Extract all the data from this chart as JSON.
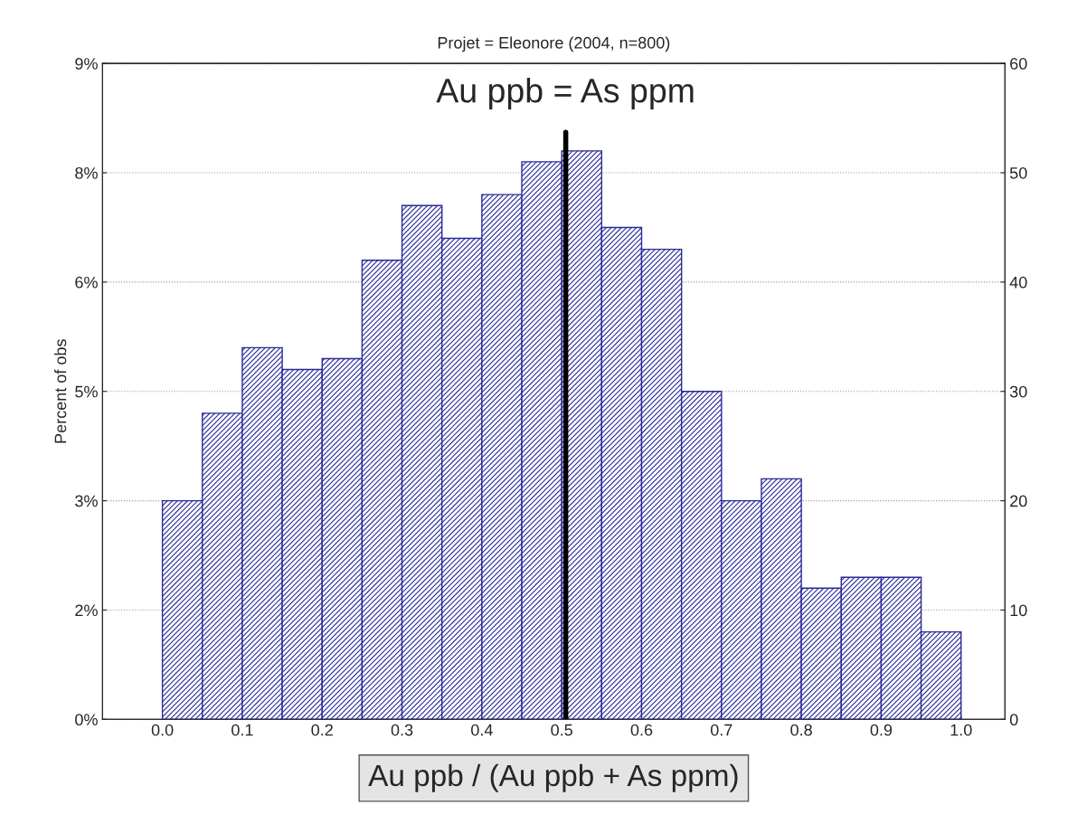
{
  "chart_data": {
    "type": "histogram",
    "title": "Projet = Eleonore (2004, n=800)",
    "xlabel": "Au ppb / (Au ppb + As ppm)",
    "ylabel": "Percent of obs",
    "bins": [
      0.0,
      0.05,
      0.1,
      0.15,
      0.2,
      0.25,
      0.3,
      0.35,
      0.4,
      0.45,
      0.5,
      0.55,
      0.6,
      0.65,
      0.7,
      0.75,
      0.8,
      0.85,
      0.9,
      0.95,
      1.0
    ],
    "series": [
      {
        "axis": "y2",
        "color": "#28289a",
        "values": [
          20,
          28,
          34,
          32,
          33,
          42,
          47,
          44,
          48,
          51,
          52,
          45,
          43,
          30,
          20,
          22,
          12,
          13,
          13,
          8
        ]
      }
    ],
    "xlim": [
      -0.075,
      1.055
    ],
    "xticks": [
      {
        "value": 0.0,
        "label": "0.0"
      },
      0.1,
      0.2,
      0.3,
      0.4,
      0.5,
      0.6,
      0.7,
      0.8,
      0.9,
      {
        "value": 1.0,
        "label": "1.0"
      }
    ],
    "ylim": [
      0,
      9.375
    ],
    "yticks": [
      {
        "value": 0,
        "label": "0%"
      },
      {
        "value": 1.5625,
        "label": "2%"
      },
      {
        "value": 3.125,
        "label": "3%"
      },
      {
        "value": 4.6875,
        "label": "5%"
      },
      {
        "value": 6.25,
        "label": "6%"
      },
      {
        "value": 7.8125,
        "label": "8%"
      },
      {
        "value": 9.375,
        "label": "9%"
      }
    ],
    "y2lim": [
      0,
      60
    ],
    "y2ticks": [
      0,
      10,
      20,
      30,
      40,
      50,
      60
    ],
    "ref_lines": [
      {
        "axis": "x",
        "value": 0.505,
        "label": "Au ppb = As ppm",
        "color": "#000000"
      }
    ],
    "grid": "y"
  }
}
